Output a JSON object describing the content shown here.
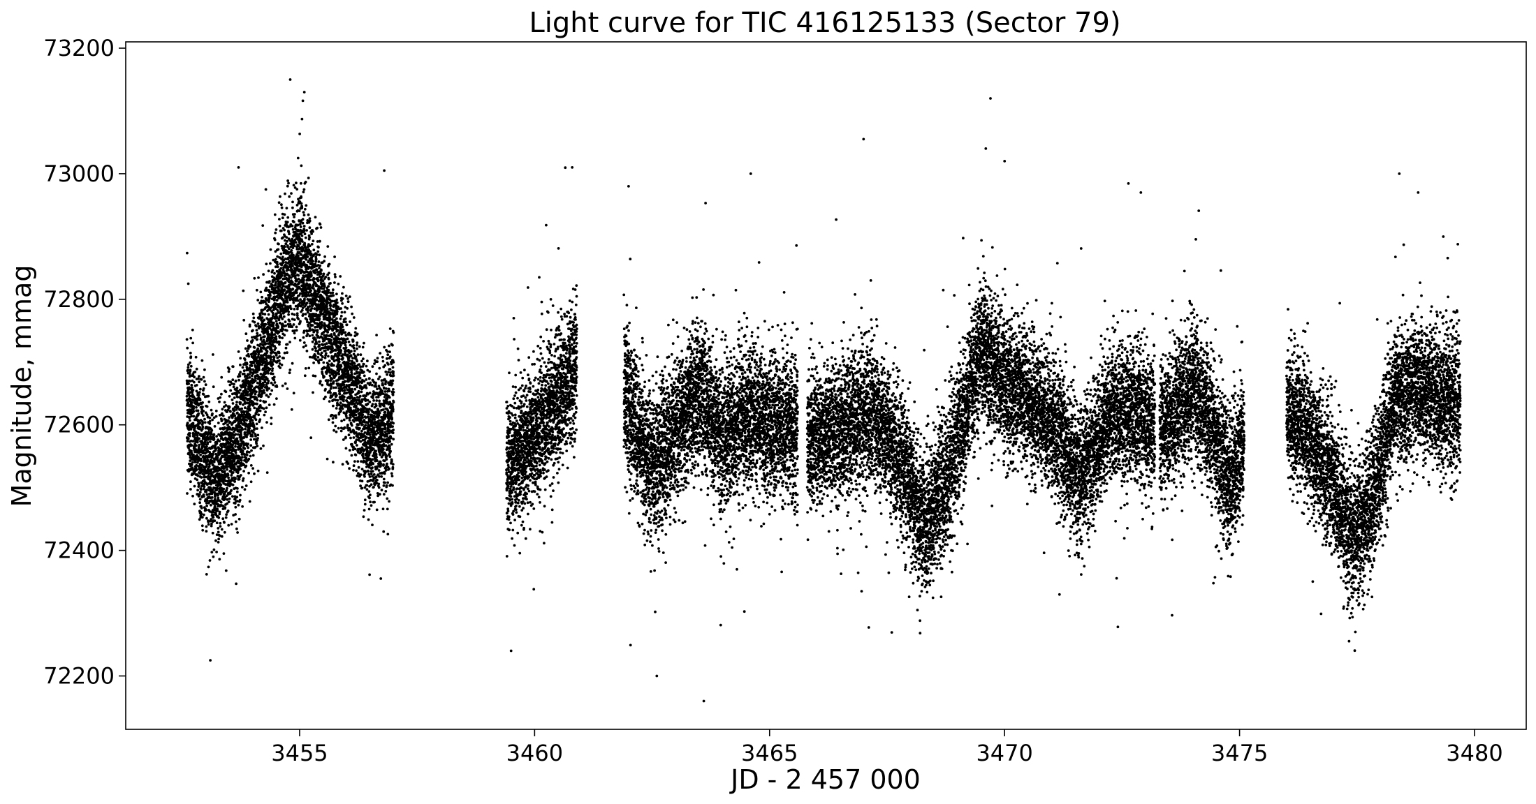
{
  "chart_data": {
    "type": "scatter",
    "title": "Light curve for TIC 416125133 (Sector 79)",
    "xlabel": "JD - 2 457 000",
    "ylabel": "Magnitude, mmag",
    "xlim": [
      3451.3,
      3481.1
    ],
    "ylim": [
      72115,
      73210
    ],
    "x_ticks": [
      3455,
      3460,
      3465,
      3470,
      3475,
      3480
    ],
    "y_ticks": [
      72200,
      72400,
      72600,
      72800,
      73000,
      73200
    ],
    "grid": false,
    "marker_color": "#000000",
    "series": [
      {
        "segments": [
          {
            "x_range": [
              3452.6,
              3457.0
            ],
            "trend": [
              [
                3452.6,
                72620
              ],
              [
                3453.2,
                72510
              ],
              [
                3453.6,
                72560
              ],
              [
                3454.2,
                72700
              ],
              [
                3454.6,
                72810
              ],
              [
                3455.0,
                72870
              ],
              [
                3455.4,
                72780
              ],
              [
                3456.0,
                72680
              ],
              [
                3456.5,
                72570
              ],
              [
                3457.0,
                72620
              ]
            ],
            "scatter": 65
          },
          {
            "x_range": [
              3459.4,
              3460.9
            ],
            "trend": [
              [
                3459.4,
                72540
              ],
              [
                3460.0,
                72580
              ],
              [
                3460.5,
                72640
              ],
              [
                3460.9,
                72700
              ]
            ],
            "scatter": 65
          },
          {
            "x_range": [
              3461.9,
              3465.6
            ],
            "trend": [
              [
                3461.9,
                72650
              ],
              [
                3462.5,
                72530
              ],
              [
                3463.2,
                72620
              ],
              [
                3463.5,
                72660
              ],
              [
                3464.0,
                72580
              ],
              [
                3464.5,
                72620
              ],
              [
                3465.0,
                72600
              ],
              [
                3465.6,
                72590
              ]
            ],
            "scatter": 70
          },
          {
            "x_range": [
              3465.8,
              3473.2
            ],
            "trend": [
              [
                3465.8,
                72580
              ],
              [
                3466.5,
                72590
              ],
              [
                3467.2,
                72620
              ],
              [
                3467.8,
                72540
              ],
              [
                3468.3,
                72440
              ],
              [
                3468.8,
                72520
              ],
              [
                3469.5,
                72720
              ],
              [
                3470.0,
                72670
              ],
              [
                3470.5,
                72640
              ],
              [
                3471.0,
                72600
              ],
              [
                3471.6,
                72520
              ],
              [
                3472.3,
                72620
              ],
              [
                3472.8,
                72620
              ],
              [
                3473.2,
                72590
              ]
            ],
            "scatter": 65
          },
          {
            "x_range": [
              3473.3,
              3475.1
            ],
            "trend": [
              [
                3473.3,
                72590
              ],
              [
                3474.0,
                72660
              ],
              [
                3474.4,
                72600
              ],
              [
                3474.8,
                72500
              ],
              [
                3475.1,
                72580
              ]
            ],
            "scatter": 65
          },
          {
            "x_range": [
              3476.0,
              3479.7
            ],
            "trend": [
              [
                3476.0,
                72620
              ],
              [
                3476.5,
                72580
              ],
              [
                3477.0,
                72500
              ],
              [
                3477.4,
                72420
              ],
              [
                3477.8,
                72470
              ],
              [
                3478.3,
                72640
              ],
              [
                3478.8,
                72660
              ],
              [
                3479.3,
                72640
              ],
              [
                3479.7,
                72640
              ]
            ],
            "scatter": 65
          }
        ],
        "outliers": [
          [
            3453.1,
            72225
          ],
          [
            3463.6,
            72160
          ],
          [
            3462.6,
            72200
          ],
          [
            3467.0,
            73055
          ],
          [
            3469.7,
            73120
          ],
          [
            3454.8,
            73150
          ],
          [
            3455.1,
            73130
          ],
          [
            3460.8,
            73010
          ],
          [
            3464.6,
            73000
          ],
          [
            3478.4,
            73000
          ],
          [
            3478.8,
            72970
          ],
          [
            3456.8,
            73005
          ],
          [
            3453.7,
            73010
          ],
          [
            3469.6,
            73040
          ],
          [
            3470.0,
            73020
          ],
          [
            3472.9,
            72970
          ],
          [
            3462.0,
            72980
          ]
        ]
      }
    ]
  }
}
